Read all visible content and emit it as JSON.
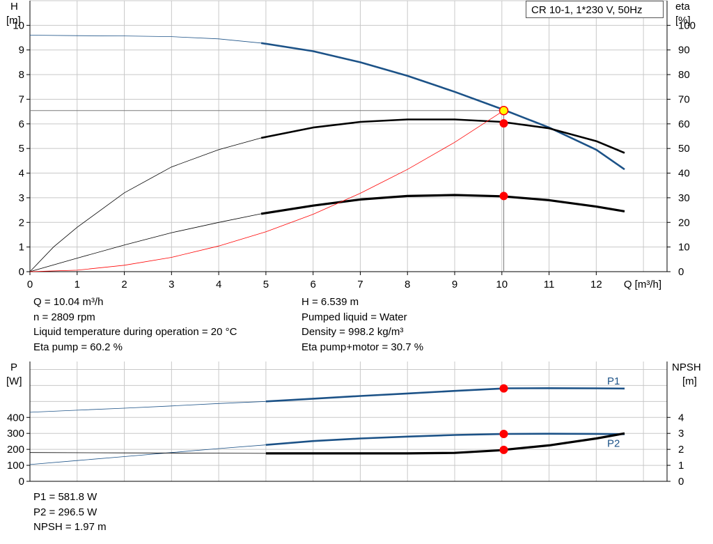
{
  "title": "CR 10-1, 1*230 V, 50Hz",
  "colors": {
    "blue": "#1c5287",
    "red": "#ff0000",
    "black": "#000000",
    "grid": "#c8c8c8",
    "point_fill": "#ff0000",
    "duty_point_fill": "#ffff00"
  },
  "info_top_left": [
    "Q = 10.04 m³/h",
    "n = 2809 rpm",
    "Liquid temperature during operation = 20 °C",
    "Eta pump = 60.2 %"
  ],
  "info_top_right": [
    "H = 6.539 m",
    "Pumped liquid = Water",
    "Density = 998.2 kg/m³",
    "Eta pump+motor = 30.7 %"
  ],
  "info_bottom": [
    "P1 = 581.8 W",
    "P2 = 296.5 W",
    "NPSH = 1.97 m"
  ],
  "chart_data": [
    {
      "type": "line",
      "xlabel": "Q [m³/h]",
      "ylabel_left": [
        "H",
        "[m]"
      ],
      "ylabel_right": [
        "eta",
        "[%]"
      ],
      "xlim": [
        0,
        13.5
      ],
      "ylim_left": [
        0,
        11
      ],
      "ylim_right": [
        0,
        110
      ],
      "xticks": [
        0,
        1,
        2,
        3,
        4,
        5,
        6,
        7,
        8,
        9,
        10,
        11,
        12
      ],
      "yticks_left": [
        0,
        1,
        2,
        3,
        4,
        5,
        6,
        7,
        8,
        9,
        10
      ],
      "yticks_right": [
        0,
        10,
        20,
        30,
        40,
        50,
        60,
        70,
        80,
        90,
        100
      ],
      "grid": true,
      "series": [
        {
          "axis": "left",
          "color": "blue",
          "thin_until_x": 4.9,
          "x": [
            0,
            1,
            2,
            3,
            4,
            4.9,
            6,
            7,
            8,
            9,
            10,
            11,
            12,
            12.6
          ],
          "y": [
            9.6,
            9.58,
            9.57,
            9.54,
            9.45,
            9.28,
            8.95,
            8.5,
            7.95,
            7.3,
            6.6,
            5.85,
            4.95,
            4.15
          ]
        },
        {
          "axis": "right",
          "color": "black",
          "thin_until_x": 4.9,
          "x": [
            0,
            0.5,
            1,
            2,
            3,
            4,
            4.9,
            6,
            7,
            8,
            9,
            10,
            11,
            12,
            12.6
          ],
          "y": [
            0,
            10,
            18,
            32,
            42.5,
            49.5,
            54.3,
            58.5,
            60.8,
            61.8,
            61.8,
            60.8,
            58.2,
            53,
            48.2
          ]
        },
        {
          "axis": "right",
          "color": "black",
          "thick": true,
          "thin_until_x": 4.9,
          "x": [
            0,
            1,
            2,
            3,
            4,
            4.9,
            6,
            7,
            8,
            9,
            10,
            11,
            12,
            12.6
          ],
          "y": [
            0,
            5.5,
            10.8,
            15.8,
            20,
            23.5,
            26.8,
            29.3,
            30.7,
            31.1,
            30.6,
            29,
            26.4,
            24.5
          ]
        },
        {
          "axis": "left",
          "color": "red",
          "thin_until_x": 10.04,
          "x": [
            0,
            1,
            2,
            3,
            4,
            5,
            6,
            7,
            8,
            9,
            10.04
          ],
          "y": [
            0,
            0.06,
            0.26,
            0.58,
            1.04,
            1.62,
            2.33,
            3.18,
            4.15,
            5.25,
            6.54
          ]
        }
      ],
      "duty_line": {
        "x": 10.04,
        "y": 6.539
      },
      "points": [
        {
          "x": 10.04,
          "y": 6.539,
          "axis": "left",
          "kind": "duty"
        },
        {
          "x": 10.04,
          "y": 60.2,
          "axis": "right",
          "kind": "normal"
        },
        {
          "x": 10.04,
          "y": 30.7,
          "axis": "right",
          "kind": "normal"
        }
      ]
    },
    {
      "type": "line",
      "ylabel_left": [
        "P",
        "[W]"
      ],
      "ylabel_right": [
        "NPSH",
        "[m]"
      ],
      "xlim": [
        0,
        13.5
      ],
      "ylim_left": [
        0,
        750
      ],
      "ylim_right": [
        0,
        7.5
      ],
      "yticks_left": [
        0,
        100,
        200,
        300,
        400
      ],
      "yticks_right": [
        0,
        1,
        2,
        3,
        4
      ],
      "grid": true,
      "series": [
        {
          "name": "P1",
          "axis": "left",
          "color": "blue",
          "thin_until_x": 5,
          "x": [
            0,
            1,
            2,
            3,
            4,
            5,
            6,
            7,
            8,
            9,
            10,
            10.04,
            11,
            12,
            12.6
          ],
          "y": [
            432,
            445,
            458,
            472,
            487,
            500,
            517,
            534,
            550,
            566,
            581,
            582,
            583,
            582,
            581
          ]
        },
        {
          "name": "P2",
          "axis": "left",
          "color": "blue",
          "thin_until_x": 5,
          "x": [
            0,
            1,
            2,
            3,
            4,
            5,
            6,
            7,
            8,
            9,
            10,
            10.04,
            11,
            12,
            12.6
          ],
          "y": [
            105,
            130,
            155,
            180,
            205,
            228,
            252,
            268,
            280,
            290,
            296,
            296.5,
            298,
            297,
            295
          ]
        },
        {
          "axis": "right",
          "color": "black",
          "thick": true,
          "thin_until_x": 5,
          "x": [
            0,
            2,
            4,
            5,
            6,
            7,
            8,
            9,
            10,
            10.04,
            11,
            12,
            12.6
          ],
          "y": [
            1.8,
            1.78,
            1.76,
            1.75,
            1.75,
            1.75,
            1.75,
            1.78,
            1.95,
            1.97,
            2.25,
            2.68,
            3
          ]
        }
      ],
      "duty_line": {
        "x": 10.04
      },
      "points": [
        {
          "x": 10.04,
          "y": 581.8,
          "axis": "left",
          "kind": "normal"
        },
        {
          "x": 10.04,
          "y": 296.5,
          "axis": "left",
          "kind": "normal"
        },
        {
          "x": 10.04,
          "y": 1.97,
          "axis": "right",
          "kind": "normal"
        }
      ]
    }
  ]
}
